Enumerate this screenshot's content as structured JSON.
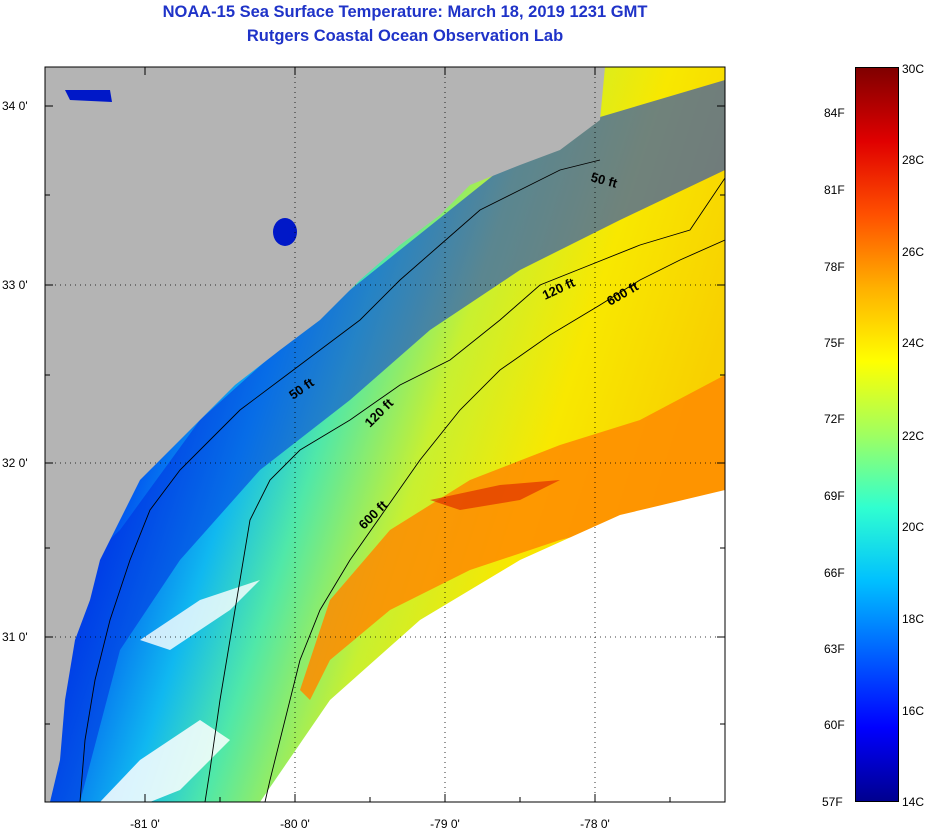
{
  "title": {
    "line1": "NOAA-15 Sea Surface Temperature:  March 18, 2019 1231 GMT",
    "line2": "Rutgers Coastal Ocean Observation Lab"
  },
  "colors": {
    "title": "#1f33c8",
    "land": "#b4b4b4",
    "cloud": "#ffffff",
    "contour": "#000000"
  },
  "map": {
    "lat_labels": [
      "34 0'",
      "33 0'",
      "32 0'",
      "31 0'"
    ],
    "lon_labels": [
      "-81 0'",
      "-80 0'",
      "-79 0'",
      "-78 0'"
    ],
    "contours": [
      {
        "label": "50 ft"
      },
      {
        "label": "120 ft"
      },
      {
        "label": "600 ft"
      },
      {
        "label": "50 ft"
      },
      {
        "label": "120 ft"
      },
      {
        "label": "600 ft"
      }
    ]
  },
  "colorbar": {
    "celsius_labels": [
      "30C",
      "28C",
      "26C",
      "24C",
      "22C",
      "20C",
      "18C",
      "16C",
      "14C"
    ],
    "fahrenheit_labels": [
      "84F",
      "81F",
      "78F",
      "75F",
      "72F",
      "69F",
      "66F",
      "63F",
      "60F",
      "57F"
    ],
    "range_c": [
      14,
      30
    ],
    "gradient": [
      "#00008f",
      "#0000ff",
      "#0060ff",
      "#00c0ff",
      "#30ffd0",
      "#a0ff60",
      "#ffff00",
      "#ffb000",
      "#ff5000",
      "#e00000",
      "#800000"
    ]
  }
}
